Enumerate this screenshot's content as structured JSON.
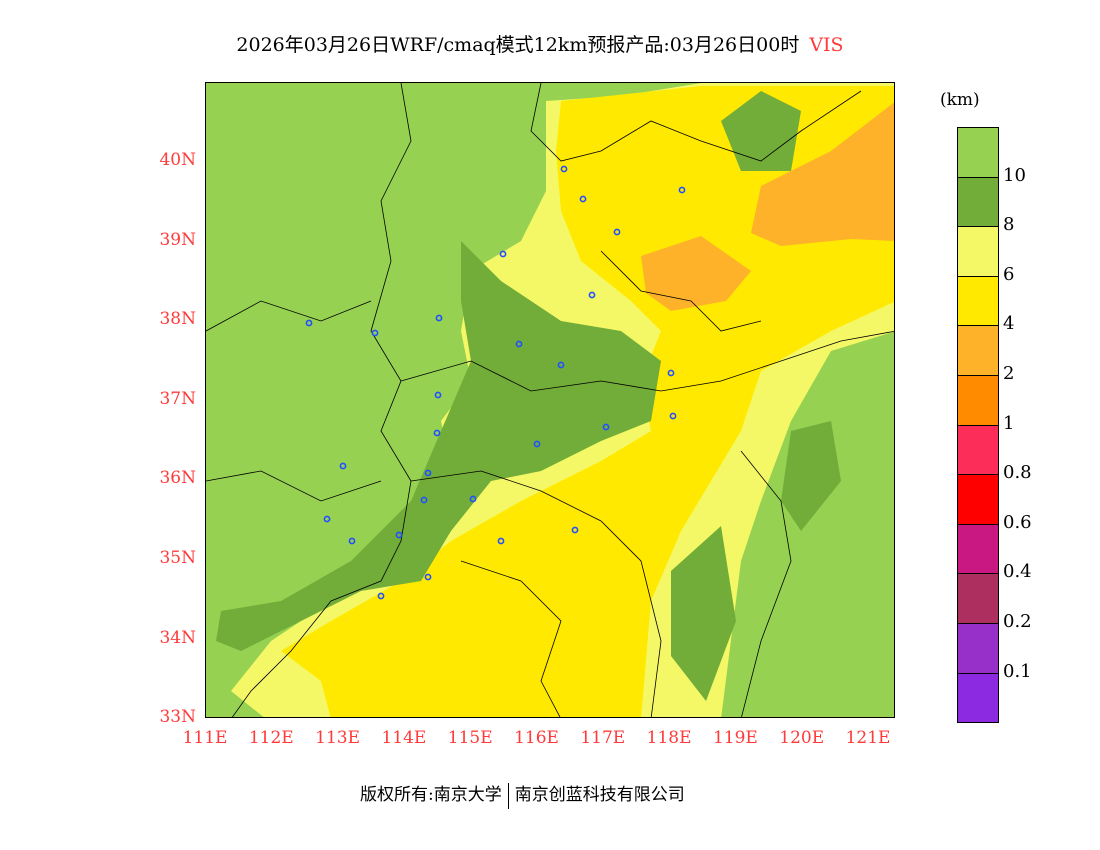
{
  "title": {
    "text": "2026年03月26日WRF/cmaq模式12km预报产品:03月26日00时",
    "variable": "VIS"
  },
  "axes": {
    "lat_labels": [
      "40N",
      "39N",
      "38N",
      "37N",
      "36N",
      "35N",
      "34N",
      "33N"
    ],
    "lon_labels": [
      "111E",
      "112E",
      "113E",
      "114E",
      "115E",
      "116E",
      "117E",
      "118E",
      "119E",
      "120E",
      "121E"
    ]
  },
  "legend": {
    "unit": "(km)",
    "colors": [
      "#96d152",
      "#71ad38",
      "#f5f866",
      "#ffe900",
      "#feb22a",
      "#ff8c00",
      "#fc2d59",
      "#fe0000",
      "#ca1883",
      "#ad2f5f",
      "#9630c8",
      "#8b2ae0"
    ],
    "labels": [
      "10",
      "8",
      "6",
      "4",
      "2",
      "1",
      "0.8",
      "0.6",
      "0.4",
      "0.2",
      "0.1"
    ]
  },
  "footer": {
    "left": "版权所有:南京大学",
    "right": "南京创蓝科技有限公司"
  }
}
